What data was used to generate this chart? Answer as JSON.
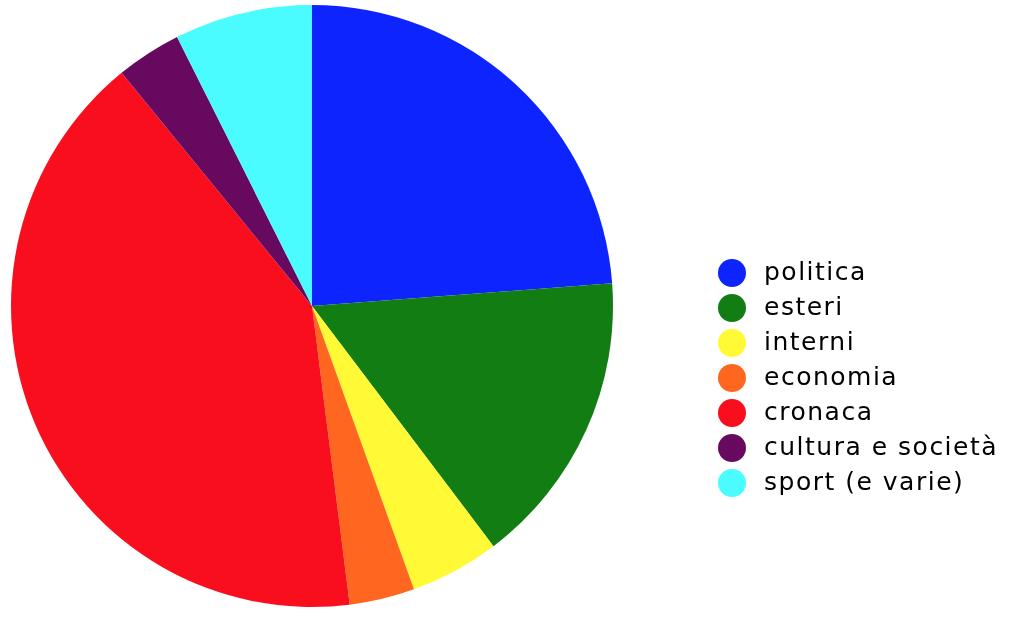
{
  "chart_data": {
    "type": "pie",
    "categories": [
      "politica",
      "esteri",
      "interni",
      "economia",
      "cronaca",
      "cultura e società",
      "sport (e varie)"
    ],
    "values": [
      23.8,
      15.9,
      4.8,
      3.5,
      41.1,
      3.5,
      7.4
    ],
    "colors": [
      "#0d24ff",
      "#117d13",
      "#fffa35",
      "#ff6620",
      "#f90e1d",
      "#670a5f",
      "#4afcfe"
    ],
    "legend": "right"
  }
}
